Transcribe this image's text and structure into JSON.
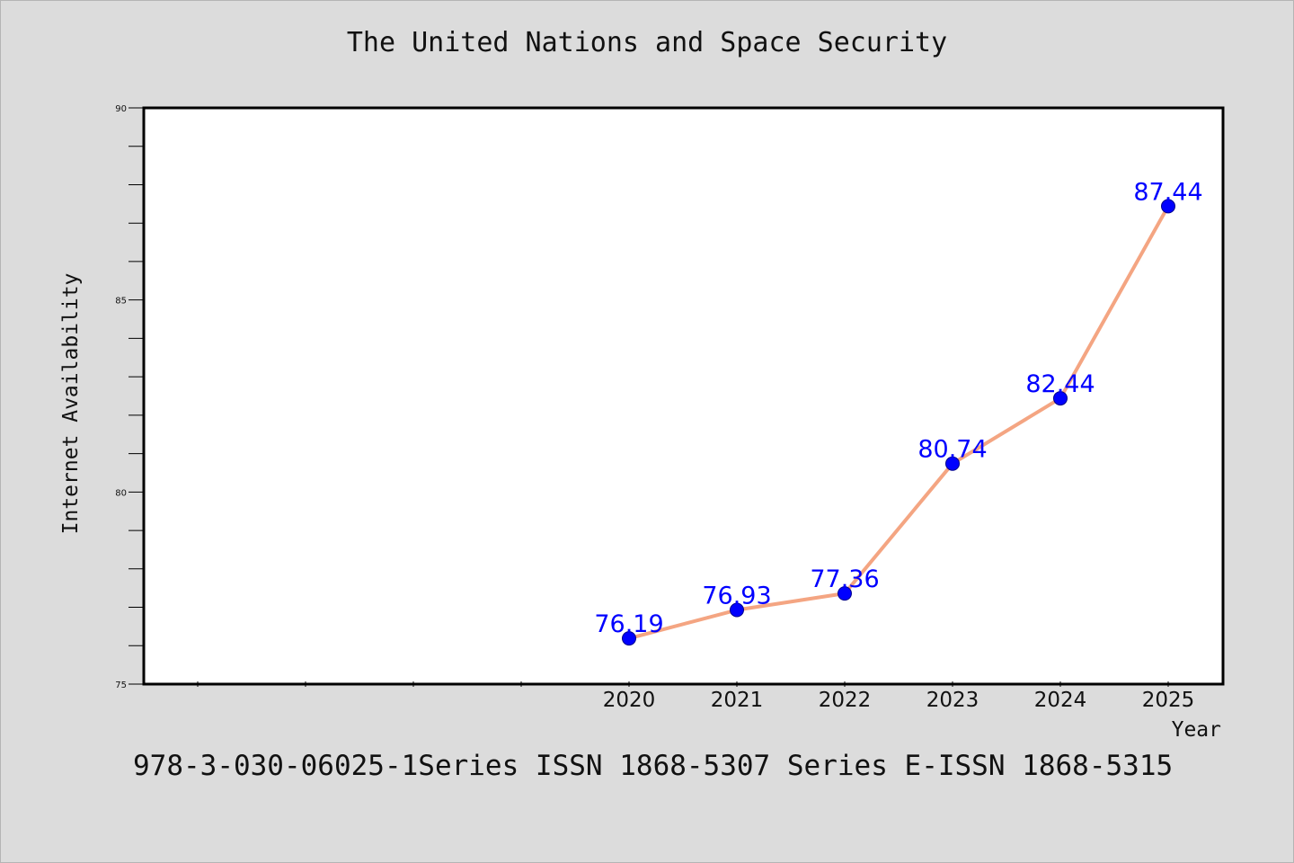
{
  "footer": "978-3-030-06025-1Series ISSN 1868-5307 Series E-ISSN 1868-5315",
  "chart_data": {
    "type": "line",
    "title": "The United Nations and Space Security",
    "xlabel": "Year",
    "ylabel": "Internet Availability",
    "categories": [
      "2020",
      "2021",
      "2022",
      "2023",
      "2024",
      "2025"
    ],
    "series": [
      {
        "values": [
          76.19,
          76.93,
          77.36,
          80.74,
          82.44,
          87.44
        ]
      }
    ],
    "data_labels": [
      "76.19",
      "76.93",
      "77.36",
      "80.74",
      "82.44",
      "87.44"
    ],
    "ylim": [
      75,
      90
    ],
    "y_ticks": [
      "75",
      "80",
      "85",
      "90"
    ],
    "grid": false,
    "legend": "none",
    "colors": {
      "line": "#f4a582",
      "marker": "#0000ff",
      "label": "#0000ff",
      "background": "#dcdcdc",
      "plot_background": "#ffffff"
    }
  }
}
